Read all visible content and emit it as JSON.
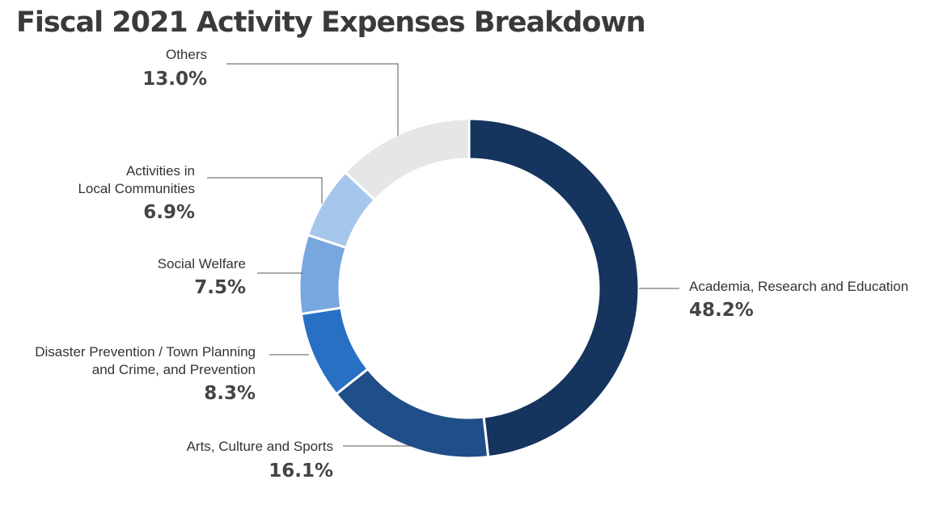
{
  "title": "Fiscal 2021 Activity Expenses Breakdown",
  "chart_data": {
    "type": "pie",
    "variant": "donut",
    "title": "Fiscal 2021 Activity Expenses Breakdown",
    "unit": "%",
    "slices": [
      {
        "name_lines": [
          "Academia, Research and Education"
        ],
        "value": 48.2,
        "label": "48.2%",
        "color": "#15345e"
      },
      {
        "name_lines": [
          "Arts, Culture and Sports"
        ],
        "value": 16.1,
        "label": "16.1%",
        "color": "#1f4e89"
      },
      {
        "name_lines": [
          "Disaster Prevention / Town Planning",
          "and Crime, and Prevention"
        ],
        "value": 8.3,
        "label": "8.3%",
        "color": "#2870c4"
      },
      {
        "name_lines": [
          "Social Welfare"
        ],
        "value": 7.5,
        "label": "7.5%",
        "color": "#78a7e0"
      },
      {
        "name_lines": [
          "Activities in",
          "Local Communities"
        ],
        "value": 6.9,
        "label": "6.9%",
        "color": "#a6c7ec"
      },
      {
        "name_lines": [
          "Others"
        ],
        "value": 13.0,
        "label": "13.0%",
        "color": "#e6e6e6"
      }
    ]
  }
}
